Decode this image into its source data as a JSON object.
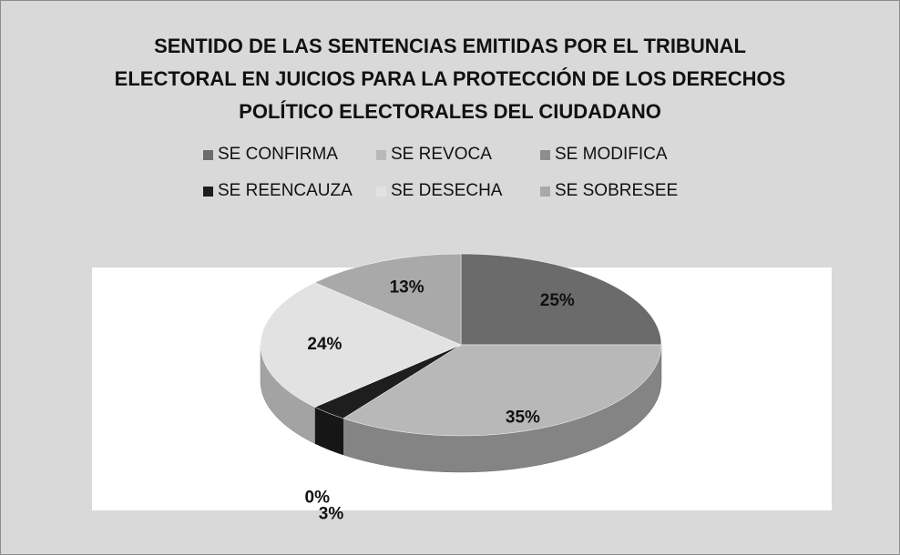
{
  "chart_data": {
    "type": "pie",
    "title": "SENTIDO DE LAS SENTENCIAS EMITIDAS POR EL TRIBUNAL ELECTORAL EN JUICIOS PARA LA PROTECCIÓN DE LOS DERECHOS POLÍTICO ELECTORALES DEL CIUDADANO",
    "categories": [
      "SE CONFIRMA",
      "SE REVOCA",
      "SE MODIFICA",
      "SE REENCAUZA",
      "SE DESECHA",
      "SE SOBRESEE"
    ],
    "values": [
      25,
      35,
      0,
      3,
      24,
      13
    ],
    "value_labels": [
      "25%",
      "35%",
      "0%",
      "3%",
      "24%",
      "13%"
    ],
    "colors": [
      "#6b6b6b",
      "#b8b8b8",
      "#8e8e8e",
      "#1e1e1e",
      "#e2e2e2",
      "#a9a9a9"
    ],
    "legend": "top"
  }
}
